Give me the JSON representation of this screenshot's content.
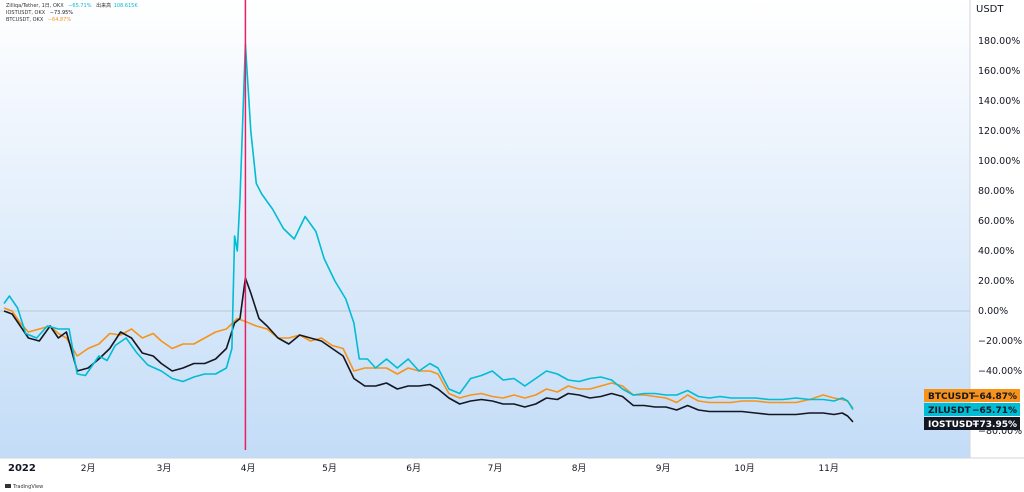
{
  "legend": {
    "line1_prefix": "Zilliqa/Tether, 1日, OKX",
    "line1_zil": "−65.71%",
    "line1_vol_label": "出来高",
    "line1_vol": "108.615K",
    "line2_prefix": "IOSTUSDT, OKX",
    "line2_value": "−73.95%",
    "line3_prefix": "BTCUSDT, OKX",
    "line3_value": "−64.87%"
  },
  "watermark": "TradingView",
  "colors": {
    "zil": "#00bcd4",
    "btc": "#f7931a",
    "iost": "#131722",
    "vline": "#e91e63",
    "zero": "#b0bec5"
  },
  "chart_data": {
    "type": "line",
    "y_unit": "USDT",
    "ylim": [
      -90,
      195
    ],
    "y_ticks": [
      180,
      160,
      140,
      120,
      100,
      80,
      60,
      40,
      20,
      0,
      -20,
      -40,
      -80
    ],
    "y_tick_labels": [
      "180.00%",
      "160.00%",
      "140.00%",
      "120.00%",
      "100.00%",
      "80.00%",
      "60.00%",
      "40.00%",
      "20.00%",
      "0.00%",
      "−20.00%",
      "−40.00%",
      "−80.00%"
    ],
    "x_range": [
      "2022-01-01",
      "2022-12-01"
    ],
    "x_ticks": [
      {
        "date": "2022-01-01",
        "label": "2022"
      },
      {
        "date": "2022-02-01",
        "label": "2月"
      },
      {
        "date": "2022-03-01",
        "label": "3月"
      },
      {
        "date": "2022-04-01",
        "label": "4月"
      },
      {
        "date": "2022-05-01",
        "label": "5月"
      },
      {
        "date": "2022-06-01",
        "label": "6月"
      },
      {
        "date": "2022-07-01",
        "label": "7月"
      },
      {
        "date": "2022-08-01",
        "label": "8月"
      },
      {
        "date": "2022-09-01",
        "label": "9月"
      },
      {
        "date": "2022-10-01",
        "label": "10月"
      },
      {
        "date": "2022-11-01",
        "label": "11月"
      }
    ],
    "vertical_marker_date": "2022-03-31",
    "series": [
      {
        "name": "ZILUSDT",
        "last_label": "−65.71%",
        "points": [
          [
            "2022-01-01",
            5
          ],
          [
            "2022-01-03",
            10
          ],
          [
            "2022-01-06",
            2
          ],
          [
            "2022-01-09",
            -15
          ],
          [
            "2022-01-13",
            -18
          ],
          [
            "2022-01-17",
            -10
          ],
          [
            "2022-01-21",
            -12
          ],
          [
            "2022-01-25",
            -12
          ],
          [
            "2022-01-28",
            -42
          ],
          [
            "2022-01-31",
            -43
          ],
          [
            "2022-02-05",
            -30
          ],
          [
            "2022-02-08",
            -33
          ],
          [
            "2022-02-11",
            -23
          ],
          [
            "2022-02-15",
            -18
          ],
          [
            "2022-02-19",
            -28
          ],
          [
            "2022-02-23",
            -36
          ],
          [
            "2022-02-28",
            -40
          ],
          [
            "2022-03-04",
            -45
          ],
          [
            "2022-03-08",
            -47
          ],
          [
            "2022-03-12",
            -44
          ],
          [
            "2022-03-16",
            -42
          ],
          [
            "2022-03-20",
            -42
          ],
          [
            "2022-03-24",
            -38
          ],
          [
            "2022-03-26",
            -25
          ],
          [
            "2022-03-27",
            50
          ],
          [
            "2022-03-28",
            40
          ],
          [
            "2022-03-29",
            75
          ],
          [
            "2022-03-31",
            178
          ],
          [
            "2022-04-02",
            120
          ],
          [
            "2022-04-04",
            85
          ],
          [
            "2022-04-06",
            78
          ],
          [
            "2022-04-10",
            68
          ],
          [
            "2022-04-14",
            55
          ],
          [
            "2022-04-18",
            48
          ],
          [
            "2022-04-22",
            63
          ],
          [
            "2022-04-26",
            53
          ],
          [
            "2022-04-29",
            35
          ],
          [
            "2022-05-03",
            20
          ],
          [
            "2022-05-07",
            8
          ],
          [
            "2022-05-10",
            -8
          ],
          [
            "2022-05-12",
            -32
          ],
          [
            "2022-05-15",
            -32
          ],
          [
            "2022-05-18",
            -38
          ],
          [
            "2022-05-22",
            -32
          ],
          [
            "2022-05-26",
            -38
          ],
          [
            "2022-05-30",
            -32
          ],
          [
            "2022-06-03",
            -40
          ],
          [
            "2022-06-07",
            -35
          ],
          [
            "2022-06-10",
            -38
          ],
          [
            "2022-06-14",
            -52
          ],
          [
            "2022-06-18",
            -55
          ],
          [
            "2022-06-22",
            -45
          ],
          [
            "2022-06-26",
            -43
          ],
          [
            "2022-06-30",
            -40
          ],
          [
            "2022-07-04",
            -46
          ],
          [
            "2022-07-08",
            -45
          ],
          [
            "2022-07-12",
            -50
          ],
          [
            "2022-07-16",
            -45
          ],
          [
            "2022-07-20",
            -40
          ],
          [
            "2022-07-24",
            -42
          ],
          [
            "2022-07-28",
            -46
          ],
          [
            "2022-08-01",
            -47
          ],
          [
            "2022-08-05",
            -45
          ],
          [
            "2022-08-09",
            -44
          ],
          [
            "2022-08-13",
            -46
          ],
          [
            "2022-08-17",
            -52
          ],
          [
            "2022-08-21",
            -56
          ],
          [
            "2022-08-25",
            -55
          ],
          [
            "2022-08-29",
            -55
          ],
          [
            "2022-09-02",
            -56
          ],
          [
            "2022-09-06",
            -56
          ],
          [
            "2022-09-10",
            -53
          ],
          [
            "2022-09-14",
            -57
          ],
          [
            "2022-09-18",
            -58
          ],
          [
            "2022-09-22",
            -57
          ],
          [
            "2022-09-26",
            -58
          ],
          [
            "2022-09-30",
            -58
          ],
          [
            "2022-10-05",
            -58
          ],
          [
            "2022-10-10",
            -59
          ],
          [
            "2022-10-15",
            -59
          ],
          [
            "2022-10-20",
            -58
          ],
          [
            "2022-10-25",
            -59
          ],
          [
            "2022-10-30",
            -59
          ],
          [
            "2022-11-03",
            -60
          ],
          [
            "2022-11-06",
            -58
          ],
          [
            "2022-11-08",
            -60
          ],
          [
            "2022-11-10",
            -65.71
          ]
        ]
      },
      {
        "name": "BTCUSDT",
        "last_label": "−64.87%",
        "points": [
          [
            "2022-01-01",
            2
          ],
          [
            "2022-01-04",
            0
          ],
          [
            "2022-01-07",
            -8
          ],
          [
            "2022-01-10",
            -14
          ],
          [
            "2022-01-14",
            -12
          ],
          [
            "2022-01-18",
            -10
          ],
          [
            "2022-01-21",
            -15
          ],
          [
            "2022-01-24",
            -18
          ],
          [
            "2022-01-28",
            -30
          ],
          [
            "2022-02-01",
            -25
          ],
          [
            "2022-02-05",
            -22
          ],
          [
            "2022-02-09",
            -15
          ],
          [
            "2022-02-13",
            -16
          ],
          [
            "2022-02-17",
            -12
          ],
          [
            "2022-02-21",
            -18
          ],
          [
            "2022-02-25",
            -15
          ],
          [
            "2022-02-28",
            -20
          ],
          [
            "2022-03-04",
            -25
          ],
          [
            "2022-03-08",
            -22
          ],
          [
            "2022-03-12",
            -22
          ],
          [
            "2022-03-16",
            -18
          ],
          [
            "2022-03-20",
            -14
          ],
          [
            "2022-03-24",
            -12
          ],
          [
            "2022-03-28",
            -5
          ],
          [
            "2022-03-31",
            -7
          ],
          [
            "2022-04-04",
            -10
          ],
          [
            "2022-04-08",
            -12
          ],
          [
            "2022-04-12",
            -18
          ],
          [
            "2022-04-16",
            -18
          ],
          [
            "2022-04-20",
            -16
          ],
          [
            "2022-04-24",
            -20
          ],
          [
            "2022-04-28",
            -18
          ],
          [
            "2022-05-02",
            -23
          ],
          [
            "2022-05-06",
            -25
          ],
          [
            "2022-05-10",
            -40
          ],
          [
            "2022-05-14",
            -38
          ],
          [
            "2022-05-18",
            -38
          ],
          [
            "2022-05-22",
            -38
          ],
          [
            "2022-05-26",
            -42
          ],
          [
            "2022-05-30",
            -38
          ],
          [
            "2022-06-03",
            -40
          ],
          [
            "2022-06-07",
            -40
          ],
          [
            "2022-06-10",
            -42
          ],
          [
            "2022-06-14",
            -55
          ],
          [
            "2022-06-18",
            -58
          ],
          [
            "2022-06-22",
            -56
          ],
          [
            "2022-06-26",
            -55
          ],
          [
            "2022-06-30",
            -57
          ],
          [
            "2022-07-04",
            -58
          ],
          [
            "2022-07-08",
            -56
          ],
          [
            "2022-07-12",
            -58
          ],
          [
            "2022-07-16",
            -56
          ],
          [
            "2022-07-20",
            -52
          ],
          [
            "2022-07-24",
            -54
          ],
          [
            "2022-07-28",
            -50
          ],
          [
            "2022-08-01",
            -52
          ],
          [
            "2022-08-05",
            -52
          ],
          [
            "2022-08-09",
            -50
          ],
          [
            "2022-08-13",
            -48
          ],
          [
            "2022-08-17",
            -50
          ],
          [
            "2022-08-21",
            -56
          ],
          [
            "2022-08-25",
            -56
          ],
          [
            "2022-08-29",
            -57
          ],
          [
            "2022-09-02",
            -58
          ],
          [
            "2022-09-06",
            -61
          ],
          [
            "2022-09-10",
            -56
          ],
          [
            "2022-09-14",
            -60
          ],
          [
            "2022-09-18",
            -61
          ],
          [
            "2022-09-22",
            -61
          ],
          [
            "2022-09-26",
            -61
          ],
          [
            "2022-09-30",
            -60
          ],
          [
            "2022-10-05",
            -60
          ],
          [
            "2022-10-10",
            -61
          ],
          [
            "2022-10-15",
            -61
          ],
          [
            "2022-10-20",
            -61
          ],
          [
            "2022-10-25",
            -59
          ],
          [
            "2022-10-30",
            -56
          ],
          [
            "2022-11-03",
            -58
          ],
          [
            "2022-11-06",
            -59
          ],
          [
            "2022-11-08",
            -60
          ],
          [
            "2022-11-10",
            -64.87
          ]
        ]
      },
      {
        "name": "IOSTUSDT",
        "last_label": "−73.95%",
        "points": [
          [
            "2022-01-01",
            0
          ],
          [
            "2022-01-04",
            -2
          ],
          [
            "2022-01-07",
            -10
          ],
          [
            "2022-01-10",
            -18
          ],
          [
            "2022-01-14",
            -20
          ],
          [
            "2022-01-18",
            -10
          ],
          [
            "2022-01-21",
            -18
          ],
          [
            "2022-01-24",
            -14
          ],
          [
            "2022-01-28",
            -40
          ],
          [
            "2022-02-01",
            -38
          ],
          [
            "2022-02-05",
            -32
          ],
          [
            "2022-02-09",
            -25
          ],
          [
            "2022-02-13",
            -14
          ],
          [
            "2022-02-17",
            -18
          ],
          [
            "2022-02-21",
            -28
          ],
          [
            "2022-02-25",
            -30
          ],
          [
            "2022-02-28",
            -35
          ],
          [
            "2022-03-04",
            -40
          ],
          [
            "2022-03-08",
            -38
          ],
          [
            "2022-03-12",
            -35
          ],
          [
            "2022-03-16",
            -35
          ],
          [
            "2022-03-20",
            -32
          ],
          [
            "2022-03-24",
            -25
          ],
          [
            "2022-03-27",
            -8
          ],
          [
            "2022-03-29",
            -5
          ],
          [
            "2022-03-31",
            22
          ],
          [
            "2022-04-02",
            12
          ],
          [
            "2022-04-05",
            -5
          ],
          [
            "2022-04-08",
            -10
          ],
          [
            "2022-04-12",
            -18
          ],
          [
            "2022-04-16",
            -22
          ],
          [
            "2022-04-20",
            -16
          ],
          [
            "2022-04-24",
            -18
          ],
          [
            "2022-04-28",
            -20
          ],
          [
            "2022-05-02",
            -25
          ],
          [
            "2022-05-06",
            -30
          ],
          [
            "2022-05-10",
            -45
          ],
          [
            "2022-05-14",
            -50
          ],
          [
            "2022-05-18",
            -50
          ],
          [
            "2022-05-22",
            -48
          ],
          [
            "2022-05-26",
            -52
          ],
          [
            "2022-05-30",
            -50
          ],
          [
            "2022-06-03",
            -50
          ],
          [
            "2022-06-07",
            -49
          ],
          [
            "2022-06-10",
            -52
          ],
          [
            "2022-06-14",
            -58
          ],
          [
            "2022-06-18",
            -62
          ],
          [
            "2022-06-22",
            -60
          ],
          [
            "2022-06-26",
            -59
          ],
          [
            "2022-06-30",
            -60
          ],
          [
            "2022-07-04",
            -62
          ],
          [
            "2022-07-08",
            -62
          ],
          [
            "2022-07-12",
            -64
          ],
          [
            "2022-07-16",
            -62
          ],
          [
            "2022-07-20",
            -58
          ],
          [
            "2022-07-24",
            -59
          ],
          [
            "2022-07-28",
            -55
          ],
          [
            "2022-08-01",
            -56
          ],
          [
            "2022-08-05",
            -58
          ],
          [
            "2022-08-09",
            -57
          ],
          [
            "2022-08-13",
            -55
          ],
          [
            "2022-08-17",
            -57
          ],
          [
            "2022-08-21",
            -63
          ],
          [
            "2022-08-25",
            -63
          ],
          [
            "2022-08-29",
            -64
          ],
          [
            "2022-09-02",
            -64
          ],
          [
            "2022-09-06",
            -66
          ],
          [
            "2022-09-10",
            -63
          ],
          [
            "2022-09-14",
            -66
          ],
          [
            "2022-09-18",
            -67
          ],
          [
            "2022-09-22",
            -67
          ],
          [
            "2022-09-26",
            -67
          ],
          [
            "2022-09-30",
            -67
          ],
          [
            "2022-10-05",
            -68
          ],
          [
            "2022-10-10",
            -69
          ],
          [
            "2022-10-15",
            -69
          ],
          [
            "2022-10-20",
            -69
          ],
          [
            "2022-10-25",
            -68
          ],
          [
            "2022-10-30",
            -68
          ],
          [
            "2022-11-03",
            -69
          ],
          [
            "2022-11-06",
            -68
          ],
          [
            "2022-11-08",
            -70
          ],
          [
            "2022-11-10",
            -73.95
          ]
        ]
      }
    ]
  }
}
